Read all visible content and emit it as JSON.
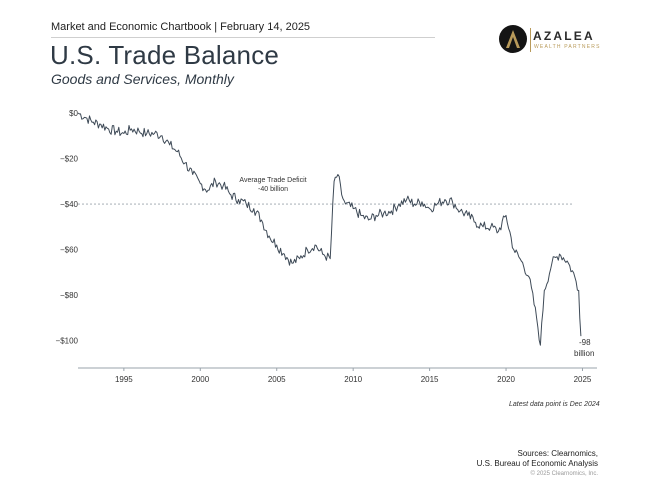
{
  "header": {
    "chartbook": "Market and Economic Chartbook | February 14, 2025",
    "title": "U.S. Trade Balance",
    "subtitle": "Goods and Services, Monthly"
  },
  "logo": {
    "name": "AZALEA",
    "tagline": "WEALTH PARTNERS",
    "mark_color": "#141414",
    "accent_color": "#b89a5a"
  },
  "chart_data": {
    "type": "line",
    "title": "U.S. Trade Balance",
    "subtitle": "Goods and Services, Monthly",
    "xlabel": "",
    "ylabel": "",
    "xlim": [
      1992.0,
      2025.95
    ],
    "ylim": [
      -105,
      0
    ],
    "yticks": [
      0,
      -20,
      -40,
      -60,
      -80,
      -100
    ],
    "ytick_labels": [
      "$0",
      "−$20",
      "−$40",
      "−$60",
      "−$80",
      "−$100"
    ],
    "xticks": [
      1995,
      2000,
      2005,
      2010,
      2015,
      2020,
      2025
    ],
    "xtick_labels": [
      "1995",
      "2000",
      "2005",
      "2010",
      "2015",
      "2020",
      "2025"
    ],
    "grid": false,
    "line_color": "#3e4a57",
    "reference_line": {
      "y": -40,
      "label_line1": "Average Trade Deficit",
      "label_line2": "-40 billion"
    },
    "end_label": {
      "line1": "-98",
      "line2": "billion"
    },
    "series": [
      {
        "x": [
          1992.0,
          1992.5,
          1993.0,
          1993.5,
          1994.0,
          1994.5,
          1995.0,
          1995.5,
          1996.0,
          1996.5,
          1997.0,
          1997.5,
          1998.0,
          1998.5,
          1999.0,
          1999.5,
          2000.0,
          2000.5,
          2001.0,
          2001.5,
          2002.0,
          2002.5,
          2003.0,
          2003.5,
          2004.0,
          2004.5,
          2005.0,
          2005.5,
          2006.0,
          2006.5,
          2007.0,
          2007.5,
          2008.0,
          2008.5,
          2008.75,
          2009.0,
          2009.25,
          2009.5,
          2010.0,
          2010.5,
          2011.0,
          2011.5,
          2012.0,
          2012.5,
          2013.0,
          2013.5,
          2014.0,
          2014.5,
          2015.0,
          2015.5,
          2016.0,
          2016.5,
          2017.0,
          2017.5,
          2018.0,
          2018.5,
          2019.0,
          2019.5,
          2020.0,
          2020.5,
          2021.0,
          2021.5,
          2022.0,
          2022.25,
          2022.5,
          2023.0,
          2023.5,
          2024.0,
          2024.5,
          2024.75,
          2024.9
        ],
        "y": [
          0,
          -2,
          -4,
          -5,
          -7,
          -8,
          -9,
          -7,
          -8,
          -9,
          -9,
          -10,
          -14,
          -17,
          -22,
          -27,
          -31,
          -34,
          -30,
          -32,
          -36,
          -38,
          -40,
          -42,
          -47,
          -54,
          -58,
          -62,
          -66,
          -64,
          -60,
          -58,
          -62,
          -64,
          -30,
          -27,
          -36,
          -40,
          -42,
          -45,
          -47,
          -45,
          -44,
          -43,
          -40,
          -38,
          -40,
          -39,
          -42,
          -40,
          -38,
          -39,
          -43,
          -45,
          -48,
          -50,
          -50,
          -52,
          -45,
          -60,
          -65,
          -72,
          -90,
          -102,
          -78,
          -66,
          -62,
          -65,
          -72,
          -78,
          -98
        ]
      }
    ]
  },
  "footnote": "Latest data point is Dec 2024",
  "sources": {
    "line1": "Sources: Clearnomics,",
    "line2": "U.S. Bureau of Economic Analysis"
  },
  "copyright": "© 2025 Clearnomics, Inc."
}
